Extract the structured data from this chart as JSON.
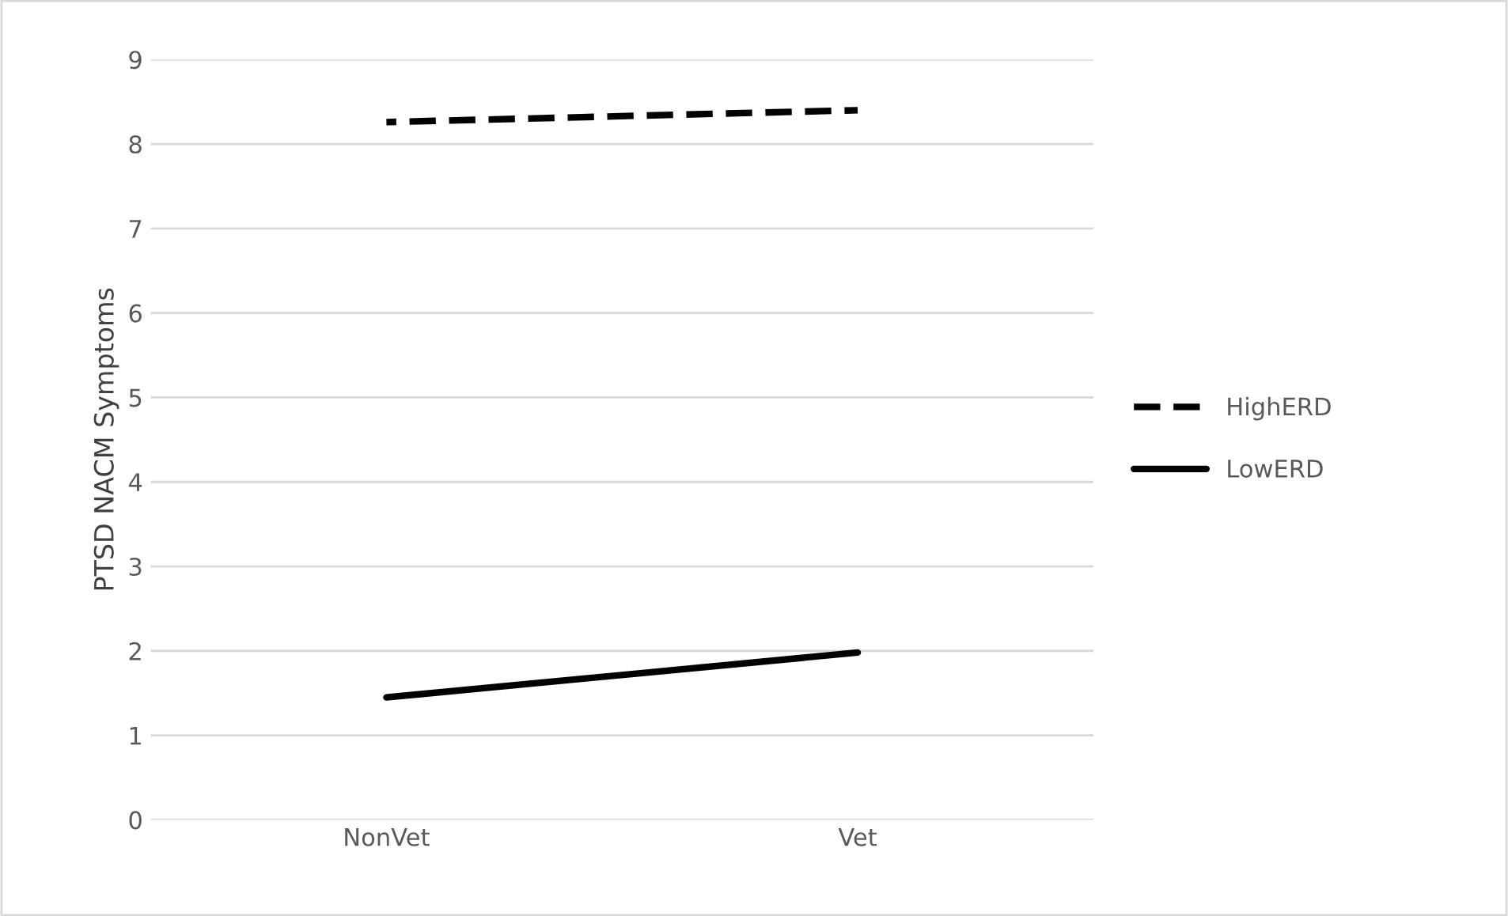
{
  "chart_data": {
    "type": "line",
    "ylabel": "PTSD NACM Symptoms",
    "categories": [
      "NonVet",
      "Vet"
    ],
    "series": [
      {
        "name": "HighERD",
        "color": "#000000",
        "values": [
          8.26,
          8.4
        ],
        "line_style": "dashed"
      },
      {
        "name": "LowERD",
        "color": "#000000",
        "values": [
          1.45,
          1.98
        ],
        "line_style": "solid"
      }
    ],
    "ylim": [
      0,
      9
    ],
    "yticks": [
      0,
      1,
      2,
      3,
      4,
      5,
      6,
      7,
      8,
      9
    ],
    "grid": "y",
    "legend": "right",
    "marker": "none"
  }
}
